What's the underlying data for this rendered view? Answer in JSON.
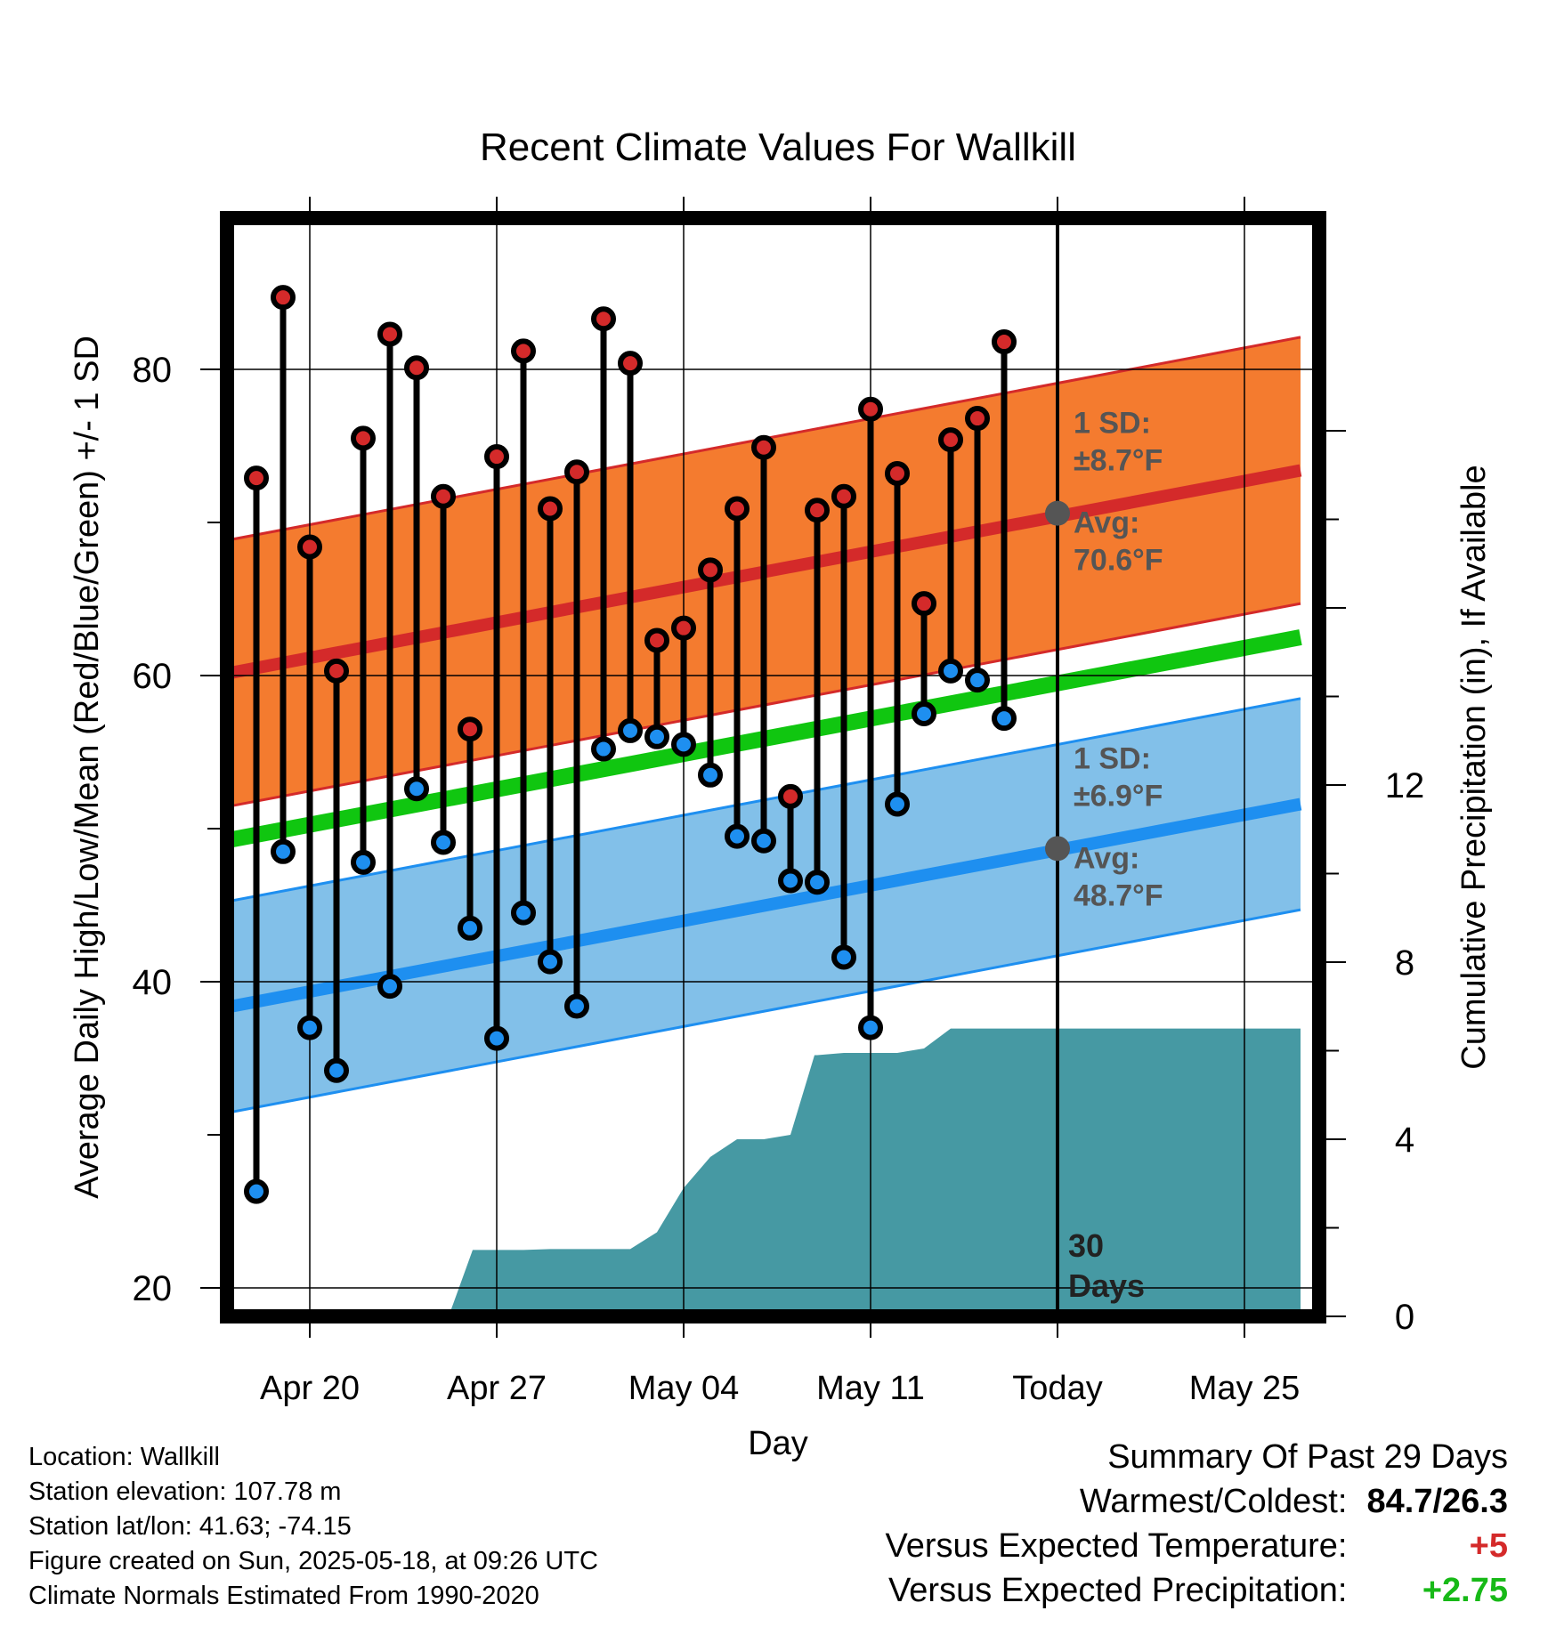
{
  "chart_data": {
    "type": "line",
    "title": "Recent Climate Values For Wallkill",
    "xlabel": "Day",
    "ylabel_left": "Average Daily High/Low/Mean (Red/Blue/Green) +/- 1 SD",
    "ylabel_right": "Cumulative Precipitation (in), If Available",
    "ylim_left": [
      18.8,
      89.3
    ],
    "ylim_right": [
      0,
      20.8
    ],
    "left_ticks": [
      20,
      40,
      60,
      80
    ],
    "right_ticks": [
      0,
      4,
      8,
      12
    ],
    "x_tick_labels": [
      "Apr 20",
      "Apr 27",
      "May 04",
      "May 11",
      "Today",
      "May 25"
    ],
    "x_tick_days": [
      20,
      27,
      34,
      41,
      48,
      55
    ],
    "days": [
      18,
      19,
      20,
      21,
      22,
      23,
      24,
      25,
      26,
      27,
      28,
      29,
      30,
      31,
      32,
      33,
      34,
      35,
      36,
      37,
      38,
      39,
      40,
      41,
      42,
      43,
      44,
      45,
      46
    ],
    "highs": [
      72.9,
      84.7,
      68.4,
      60.3,
      75.5,
      82.3,
      80.1,
      71.7,
      56.5,
      74.3,
      81.2,
      70.9,
      73.3,
      83.3,
      80.4,
      62.3,
      63.1,
      66.9,
      70.9,
      74.9,
      52.1,
      70.8,
      71.7,
      77.4,
      73.2,
      64.7,
      75.4,
      76.8,
      81.8
    ],
    "lows": [
      26.3,
      48.5,
      37.0,
      34.2,
      47.8,
      39.7,
      52.6,
      49.1,
      43.5,
      36.3,
      44.5,
      41.3,
      38.4,
      55.2,
      56.4,
      56.0,
      55.5,
      53.5,
      49.5,
      49.2,
      46.6,
      46.5,
      41.6,
      37.0,
      51.6,
      57.5,
      60.3,
      59.7,
      57.2
    ],
    "normals": {
      "high_avg": {
        "start": 60.1,
        "end": 73.4
      },
      "high_sd": 8.7,
      "low_avg": {
        "start": 38.3,
        "end": 51.6
      },
      "low_sd": 6.9,
      "mean": {
        "start": 49.2,
        "end": 62.5
      },
      "x_start": 16.8,
      "x_end": 57.1
    },
    "precip_cumulative": {
      "x": [
        16.8,
        25.2,
        26.1,
        27.0,
        28.0,
        29.0,
        30.0,
        31.0,
        32.0,
        33.0,
        34.0,
        35.0,
        36.0,
        37.0,
        38.0,
        38.9,
        39.0,
        40.0,
        41.0,
        42.0,
        43.0,
        44.0,
        45.0,
        46.0,
        47.0,
        48.0,
        57.1
      ],
      "y": [
        0.0,
        0.0,
        1.5,
        1.5,
        1.5,
        1.52,
        1.52,
        1.52,
        1.52,
        1.9,
        2.9,
        3.6,
        4.0,
        4.0,
        4.1,
        5.9,
        5.9,
        5.95,
        5.95,
        5.95,
        6.05,
        6.5,
        6.5,
        6.5,
        6.5,
        6.5,
        6.5
      ]
    },
    "today_day": 48,
    "period_label": "30 Days",
    "high_annotation": {
      "sd_label": "1 SD:",
      "sd_value": "±8.7°F",
      "avg_label": "Avg:",
      "avg_value": "70.6°F",
      "avg": 70.6
    },
    "low_annotation": {
      "sd_label": "1 SD:",
      "sd_value": "±6.9°F",
      "avg_label": "Avg:",
      "avg_value": "48.7°F",
      "avg": 48.7
    },
    "colors": {
      "high_band": "#f47b2f",
      "high_line": "#d42a2a",
      "low_band": "#82c0e9",
      "low_line": "#1e8ff0",
      "mean_line": "#10c610",
      "precip": "#4699a3",
      "high_marker": "#d42a2a",
      "low_marker": "#1e8ff0",
      "annotation": "#555555"
    }
  },
  "footer": {
    "location": "Location: Wallkill",
    "elevation": "Station elevation: 107.78 m",
    "latlon": "Station lat/lon: 41.63; -74.15",
    "created": "Figure created on Sun, 2025-05-18, at 09:26 UTC",
    "normals": "Climate Normals Estimated From 1990-2020"
  },
  "summary": {
    "title": "Summary Of Past 29 Days",
    "warm_cold_label": "Warmest/Coldest:",
    "warm_cold_value": "84.7/26.3",
    "temp_label": "Versus Expected Temperature:",
    "temp_value": "+5",
    "precip_label": "Versus Expected Precipitation:",
    "precip_value": "+2.75"
  }
}
